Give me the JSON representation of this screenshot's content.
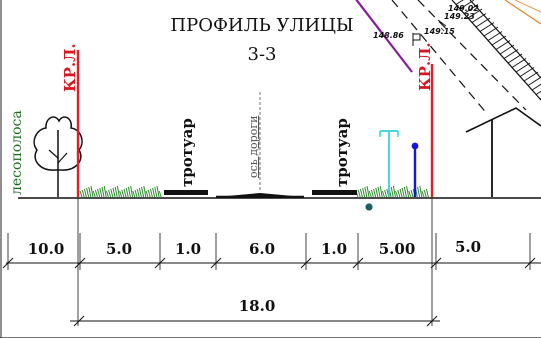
{
  "title": {
    "line1": "ПРОФИЛЬ УЛИЦЫ",
    "line2": "3-3"
  },
  "labels": {
    "red_line_left": "КР.Л.",
    "red_line_right": "КР.Л.",
    "forest_strip": "лесополоса",
    "sidewalk_left": "тротуар",
    "sidewalk_right": "тротуар",
    "road_axis": "ось дороги"
  },
  "elevations": {
    "e1": "149.02",
    "e2": "149.23",
    "e3": "148.86",
    "e4": "149.15"
  },
  "dimensions": {
    "segments": [
      "10.0",
      "5.0",
      "1.0",
      "6.0",
      "1.0",
      "5.00",
      "5.0"
    ],
    "overall": "18.0"
  },
  "colors": {
    "red_line": "#e41e26",
    "forest": "#1e6b1e",
    "grass": "#2e8b2e",
    "lamp": "#31d5d5",
    "post": "#1515e0",
    "purple": "#8a1a9c",
    "orange": "#e0882a",
    "ink": "#111111"
  },
  "icons": {
    "tree": "tree-icon",
    "house": "house-roof-icon",
    "lamp": "street-lamp-icon",
    "post": "blue-post-icon",
    "flag": "elevation-flag-icon",
    "well": "manhole-dot-icon"
  }
}
